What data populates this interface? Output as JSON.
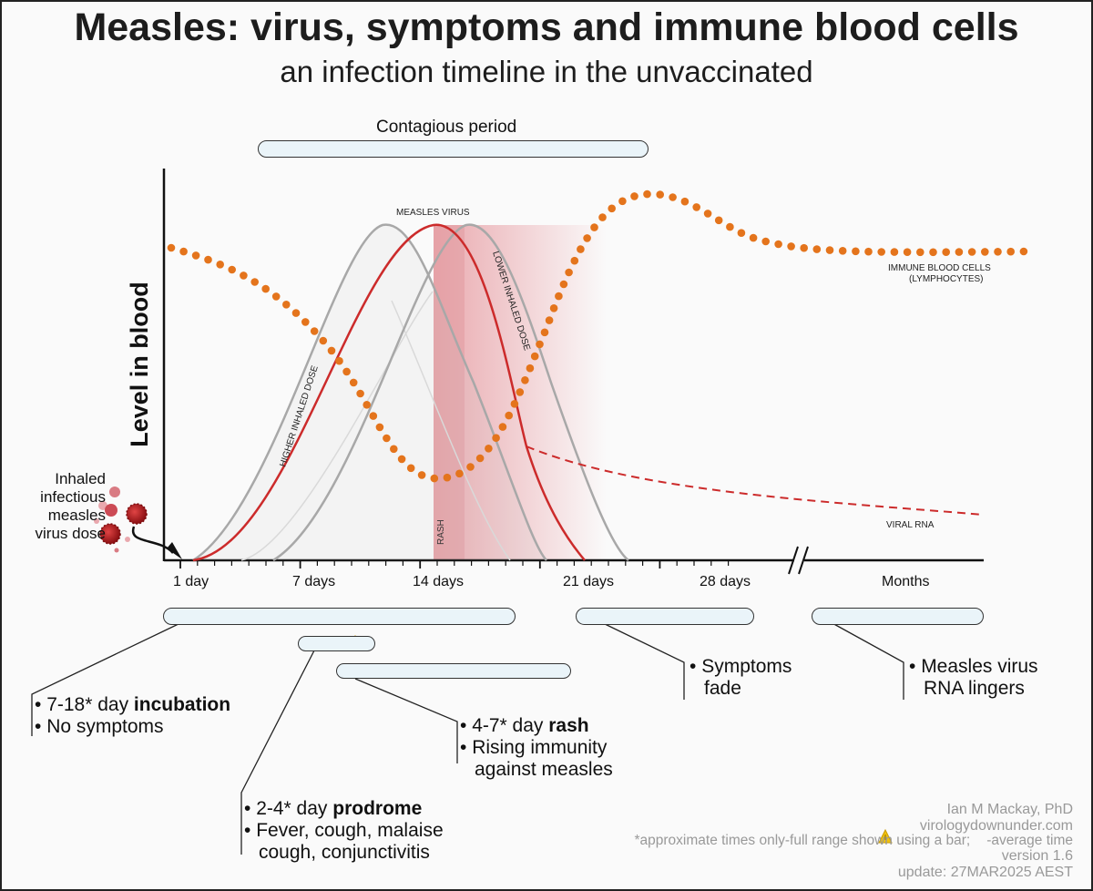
{
  "title": "Measles: virus, symptoms and immune blood cells",
  "subtitle": "an infection timeline in the unvaccinated",
  "contagious_label": "Contagious period",
  "y_axis_label": "Level in blood",
  "x_ticks": [
    "1 day",
    "7 days",
    "14 days",
    "21 days",
    "28 days",
    "Months"
  ],
  "curve_labels": {
    "measles_virus": "MEASLES VIRUS",
    "higher_dose": "HIGHER INHALED DOSE",
    "lower_dose": "LOWER INHALED DOSE",
    "immune_1": "IMMUNE BLOOD CELLS",
    "immune_2": "(LYMPHOCYTES)",
    "viral_rna": "VIRAL RNA",
    "rash": "RASH"
  },
  "inhaled": [
    "Inhaled",
    "infectious",
    "measles",
    "virus dose"
  ],
  "phases": {
    "incubation": {
      "range": "7-18* day ",
      "name": "incubation",
      "note": "No symptoms"
    },
    "prodrome": {
      "range": "2-4* day ",
      "name": "prodrome",
      "note1": "Fever, cough, malaise",
      "note2": "cough, conjunctivitis"
    },
    "rash": {
      "range": "4-7* day ",
      "name": "rash",
      "note1": "Rising immunity",
      "note2": "against measles"
    },
    "fade": {
      "line1": "Symptoms",
      "line2": "fade"
    },
    "lingers": {
      "line1": "Measles virus",
      "line2": "RNA lingers"
    }
  },
  "credits": {
    "author": "Ian M Mackay, PhD",
    "site": "virologydownunder.com",
    "note_a": "*approximate times only-full range shown using a bar;",
    "note_b": "-average time",
    "version": "version 1.6",
    "update": "update: 27MAR2025 AEST"
  },
  "colors": {
    "virus": "#cc2b2b",
    "dose_curves": "#a8a8a8",
    "immune_dots": "#e4741c",
    "rash_shade": "#e8a0a6",
    "bar_fill": "#eaf4f9",
    "triangle": "#f2c20a"
  }
}
